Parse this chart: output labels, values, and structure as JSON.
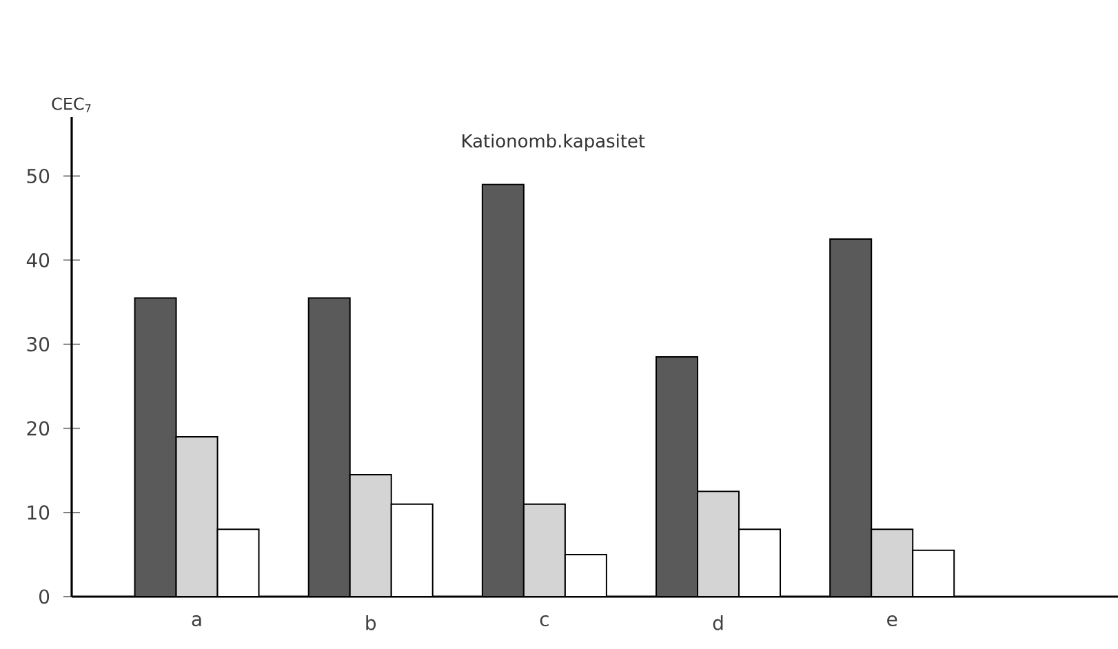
{
  "chart_data": {
    "type": "bar",
    "title": "Kationomb.kapasitet",
    "ylabel": "CEC$_{7}$",
    "categories": [
      "a",
      "b",
      "c",
      "d",
      "e"
    ],
    "series": [
      {
        "color": "#5a5a5a",
        "values": [
          35.5,
          35.5,
          49,
          28.5,
          42.5
        ]
      },
      {
        "color": "#d4d4d4",
        "values": [
          19,
          14.5,
          11,
          12.5,
          8
        ]
      },
      {
        "color": "#ffffff",
        "values": [
          8,
          11,
          5,
          8,
          5.5
        ]
      }
    ],
    "ylim": [
      0,
      57
    ],
    "yticks": [
      0,
      10,
      20,
      30,
      40,
      50
    ],
    "grid": false
  }
}
